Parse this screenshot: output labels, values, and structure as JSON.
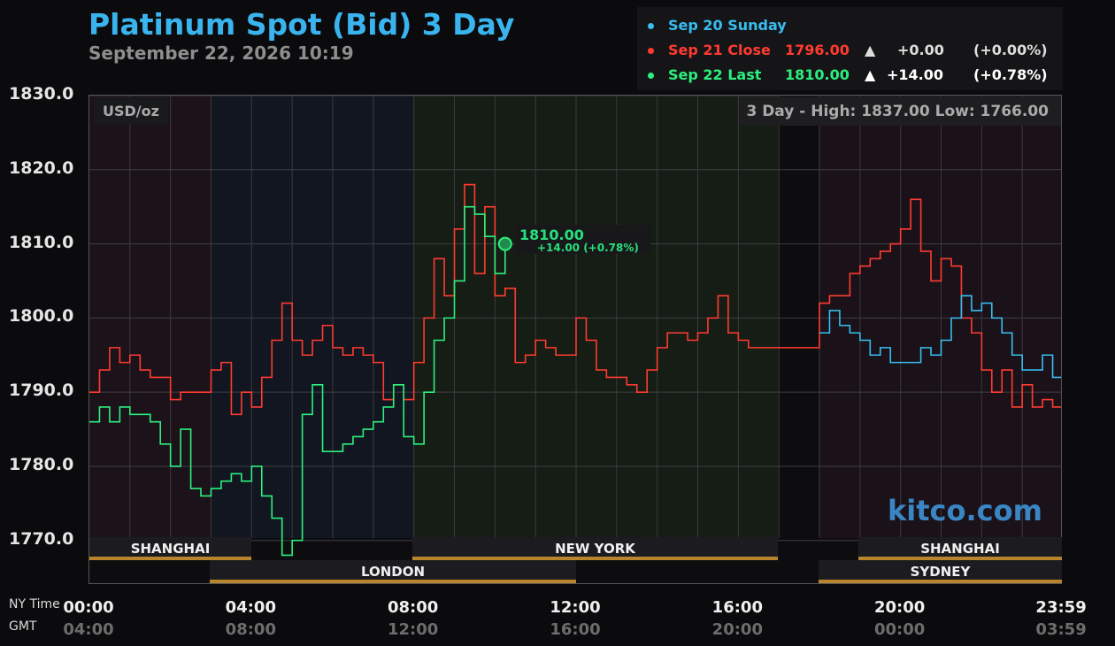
{
  "header": {
    "title": "Platinum Spot (Bid) 3 Day",
    "subtitle": "September 22, 2026 10:19"
  },
  "legend": [
    {
      "label": "Sep 20 Sunday",
      "price": "",
      "arrow": "",
      "change": "",
      "pct": "",
      "color": "#38bdf0"
    },
    {
      "label": "Sep 21 Close",
      "price": "1796.00",
      "arrow": "▲",
      "change": "+0.00",
      "pct": "(+0.00%)",
      "color": "#ff3b30"
    },
    {
      "label": "Sep 22 Last",
      "price": "1810.00",
      "arrow": "▲",
      "change": "+14.00",
      "pct": "(+0.78%)",
      "color": "#2cf07e"
    }
  ],
  "plot": {
    "unit": "USD/oz",
    "high_low": "3 Day - High: 1837.00  Low: 1766.00",
    "brand": "kitco.com",
    "current_price": "1810.00",
    "current_change": "+14.00 (+0.78%)"
  },
  "sessions": {
    "row1": [
      "SHANGHAI",
      "NEW YORK",
      "SHANGHAI"
    ],
    "row2": [
      "LONDON",
      "SYDNEY"
    ]
  },
  "x_axis": {
    "ny_label": "NY Time",
    "gmt_label": "GMT",
    "ny_ticks": [
      "00:00",
      "04:00",
      "08:00",
      "12:00",
      "16:00",
      "20:00",
      "23:59"
    ],
    "gmt_ticks": [
      "04:00",
      "08:00",
      "12:00",
      "16:00",
      "20:00",
      "00:00",
      "03:59"
    ]
  },
  "chart_data": {
    "type": "line",
    "title": "Platinum Spot (Bid) 3 Day",
    "ylabel": "USD/oz",
    "ylim": [
      1764,
      1830
    ],
    "xlim": [
      0,
      24
    ],
    "y_ticks": [
      "1830.0",
      "1820.0",
      "1810.0",
      "1800.0",
      "1790.0",
      "1780.0",
      "1770.0"
    ],
    "y_tick_values": [
      1830,
      1820,
      1810,
      1800,
      1790,
      1780,
      1770
    ],
    "series": [
      {
        "name": "Sep 21 Close",
        "color": "#ff3b30",
        "x": [
          0,
          0.25,
          0.5,
          0.75,
          1,
          1.25,
          1.5,
          1.75,
          2,
          2.25,
          2.5,
          2.75,
          3,
          3.25,
          3.5,
          3.75,
          4,
          4.25,
          4.5,
          4.75,
          5,
          5.25,
          5.5,
          5.75,
          6,
          6.25,
          6.5,
          6.75,
          7,
          7.25,
          7.5,
          7.75,
          8,
          8.25,
          8.5,
          8.75,
          9,
          9.25,
          9.5,
          9.75,
          10,
          10.25,
          10.5,
          10.75,
          11,
          11.25,
          11.5,
          11.75,
          12,
          12.25,
          12.5,
          12.75,
          13,
          13.25,
          13.5,
          13.75,
          14,
          14.25,
          14.5,
          14.75,
          15,
          15.25,
          15.5,
          15.75,
          16,
          16.25,
          16.5,
          16.75,
          17,
          17.25,
          17.5,
          17.75,
          18,
          18.25,
          18.5,
          18.75,
          19,
          19.25,
          19.5,
          19.75,
          20,
          20.25,
          20.5,
          20.75,
          21,
          21.25,
          21.5,
          21.75,
          22,
          22.25,
          22.5,
          22.75,
          23,
          23.25,
          23.5,
          23.75,
          23.98
        ],
        "y": [
          1790,
          1793,
          1796,
          1794,
          1795,
          1793,
          1792,
          1792,
          1789,
          1790,
          1790,
          1790,
          1793,
          1794,
          1787,
          1790,
          1788,
          1792,
          1797,
          1802,
          1797,
          1795,
          1797,
          1799,
          1796,
          1795,
          1796,
          1795,
          1794,
          1789,
          1791,
          1789,
          1794,
          1800,
          1808,
          1803,
          1812,
          1818,
          1806,
          1815,
          1803,
          1804,
          1794,
          1795,
          1797,
          1796,
          1795,
          1795,
          1800,
          1797,
          1793,
          1792,
          1792,
          1791,
          1790,
          1793,
          1796,
          1798,
          1798,
          1797,
          1798,
          1800,
          1803,
          1798,
          1797,
          1796,
          1796,
          1796,
          1796,
          1796,
          1796,
          1796,
          1802,
          1803,
          1803,
          1806,
          1807,
          1808,
          1809,
          1810,
          1812,
          1816,
          1809,
          1805,
          1808,
          1807,
          1800,
          1798,
          1793,
          1790,
          1793,
          1788,
          1791,
          1788,
          1789,
          1788,
          1787
        ]
      },
      {
        "name": "Sep 22 Last",
        "color": "#2cf07e",
        "x": [
          0,
          0.25,
          0.5,
          0.75,
          1,
          1.25,
          1.5,
          1.75,
          2,
          2.25,
          2.5,
          2.75,
          3,
          3.25,
          3.5,
          3.75,
          4,
          4.25,
          4.5,
          4.75,
          5,
          5.25,
          5.5,
          5.75,
          6,
          6.25,
          6.5,
          6.75,
          7,
          7.25,
          7.5,
          7.75,
          8,
          8.25,
          8.5,
          8.75,
          9,
          9.25,
          9.5,
          9.75,
          10,
          10.25
        ],
        "y": [
          1786,
          1788,
          1786,
          1788,
          1787,
          1787,
          1786,
          1783,
          1780,
          1785,
          1777,
          1776,
          1777,
          1778,
          1779,
          1778,
          1780,
          1776,
          1773,
          1768,
          1770,
          1787,
          1791,
          1782,
          1782,
          1783,
          1784,
          1785,
          1786,
          1788,
          1791,
          1784,
          1783,
          1790,
          1797,
          1800,
          1805,
          1815,
          1814,
          1811,
          1806,
          1810
        ]
      },
      {
        "name": "Sep 20 Sunday",
        "color": "#38bdf0",
        "x": [
          18,
          18.25,
          18.5,
          18.75,
          19,
          19.25,
          19.5,
          19.75,
          20,
          20.25,
          20.5,
          20.75,
          21,
          21.25,
          21.5,
          21.75,
          22,
          22.25,
          22.5,
          22.75,
          23,
          23.25,
          23.5,
          23.75,
          23.98
        ],
        "y": [
          1798,
          1801,
          1799,
          1798,
          1797,
          1795,
          1796,
          1794,
          1794,
          1794,
          1796,
          1795,
          1797,
          1800,
          1803,
          1801,
          1802,
          1800,
          1798,
          1795,
          1793,
          1793,
          1795,
          1792,
          1790
        ]
      }
    ],
    "current_point": {
      "x": 10.25,
      "y": 1810
    }
  }
}
